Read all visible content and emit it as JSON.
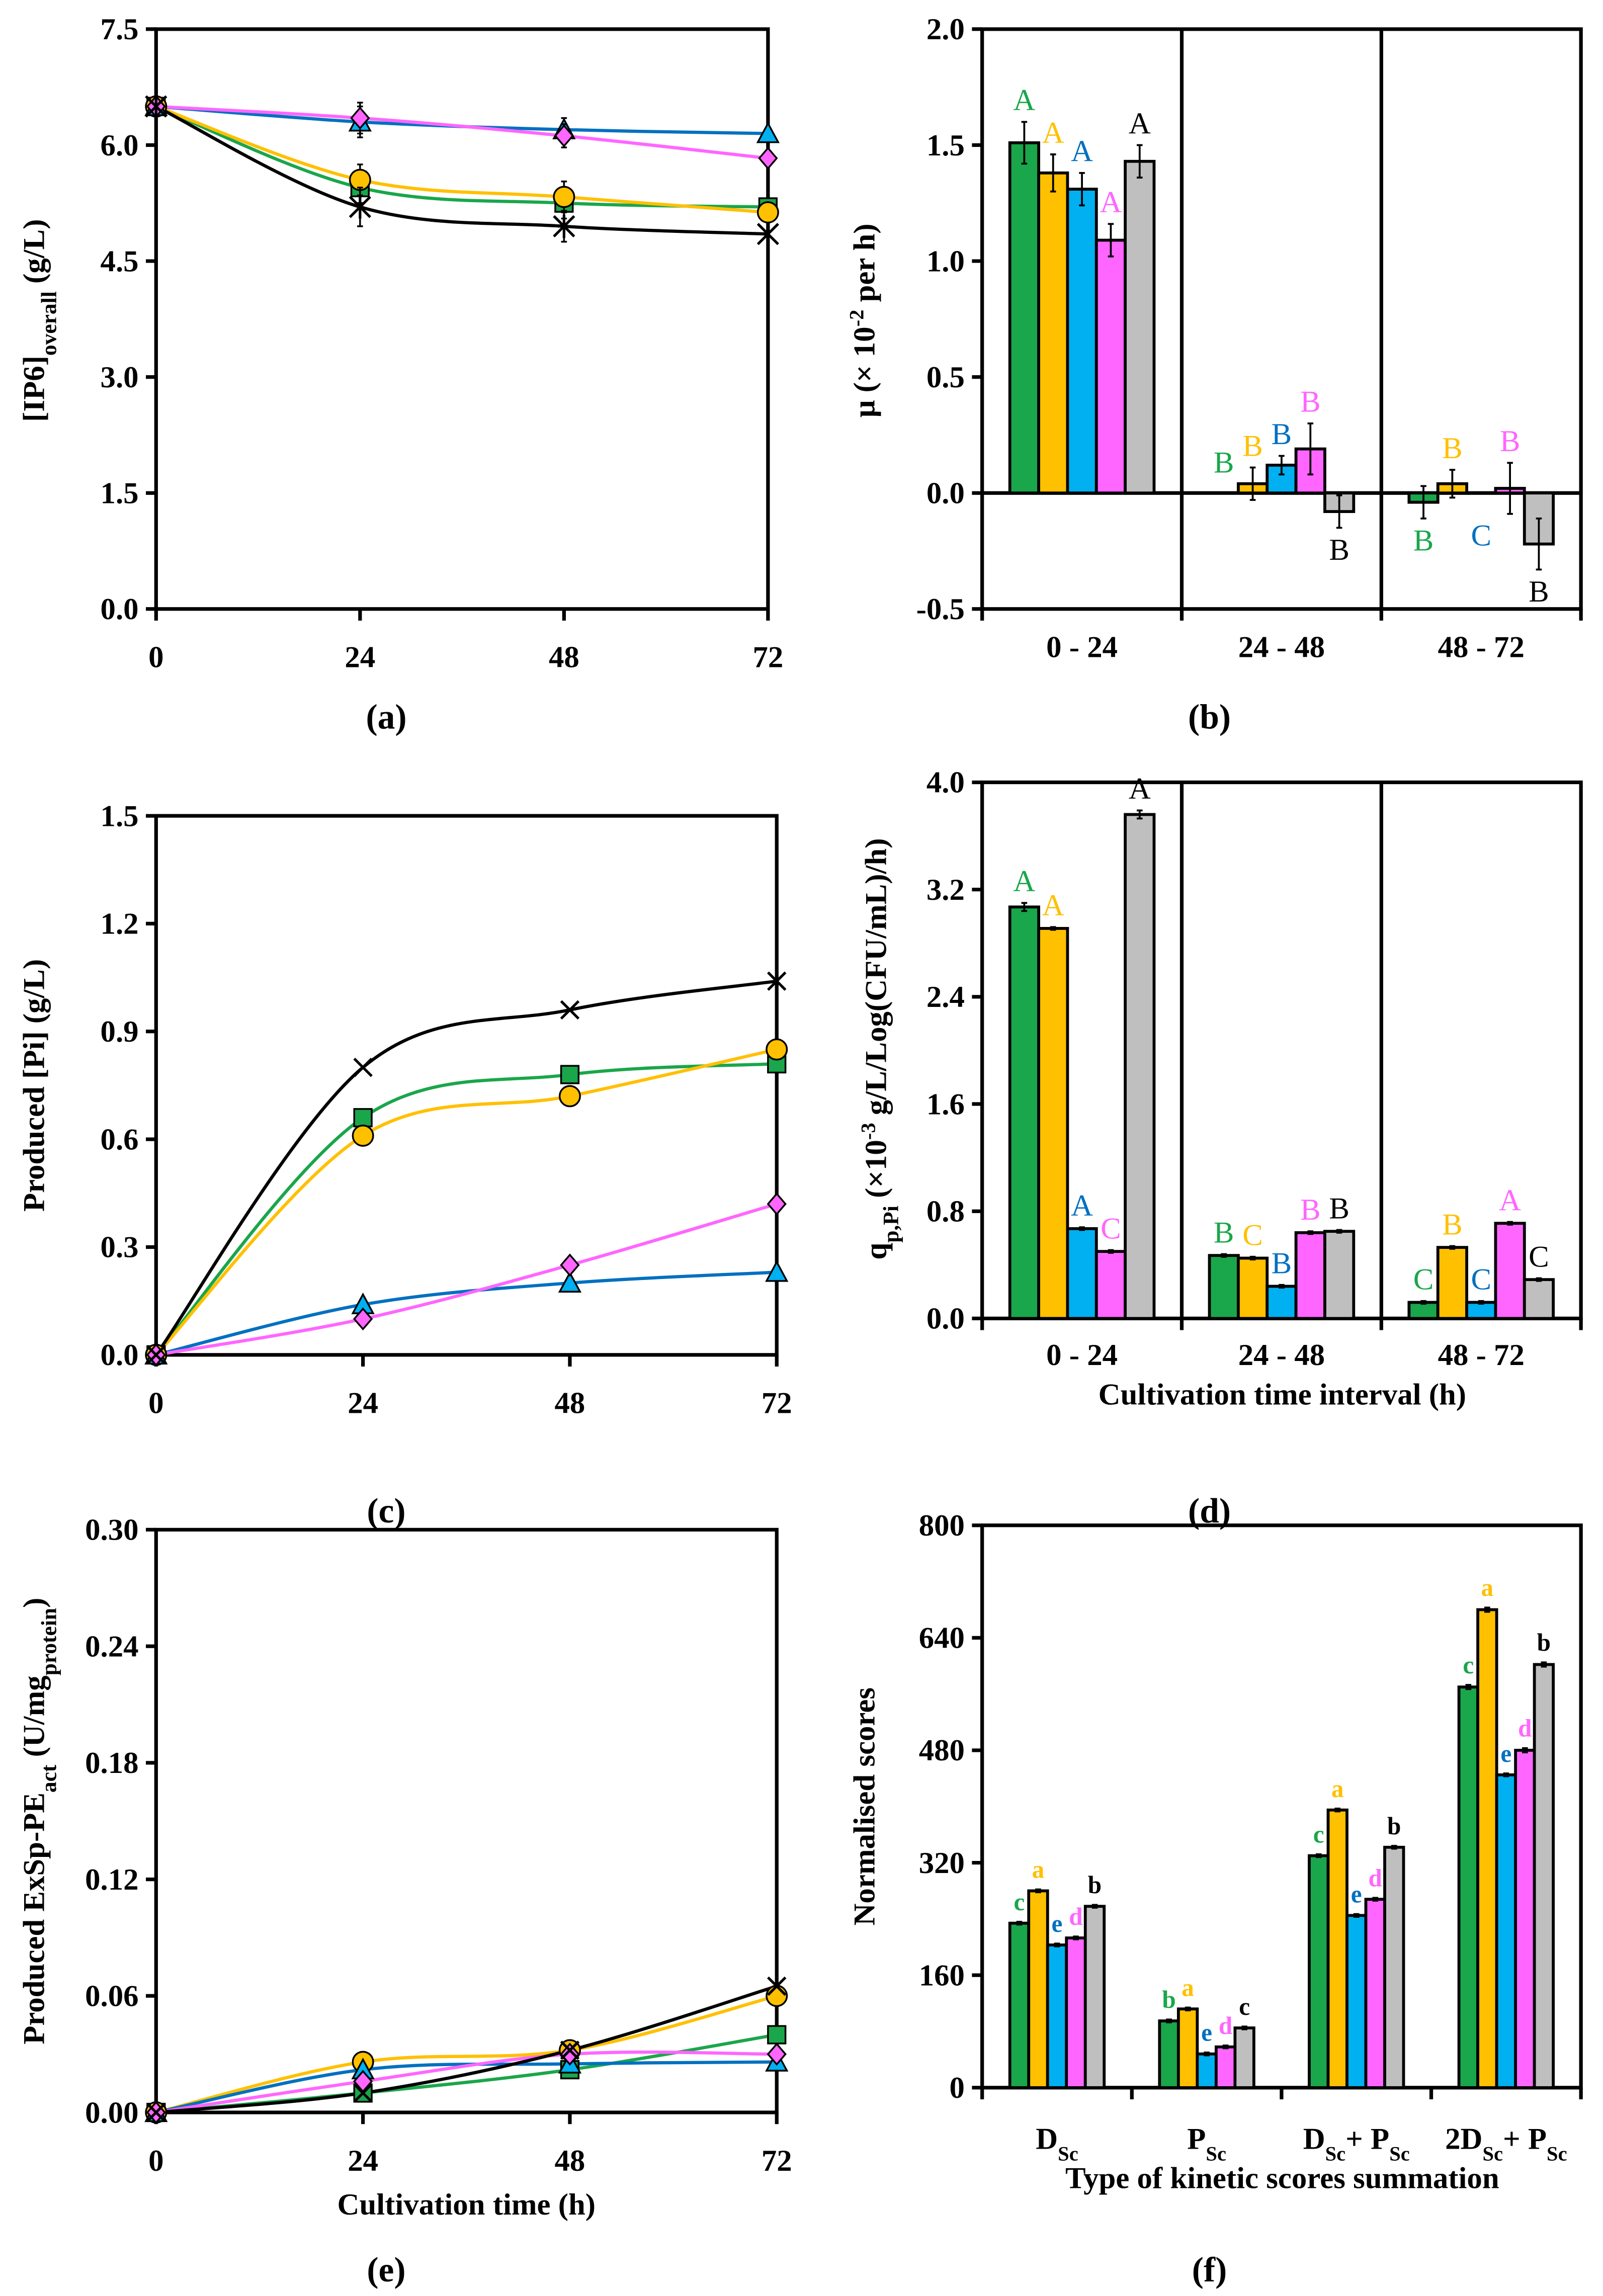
{
  "colors": {
    "green": "#1aa64a",
    "yellow": "#ffc000",
    "blue": "#00b0f0",
    "blue_line": "#0070c0",
    "pink": "#ff66ff",
    "gray": "#bfbfbf",
    "black": "#000000",
    "blue_letter": "#0070c0"
  },
  "chart_data": [
    {
      "id": "a",
      "type": "line",
      "panel_label": "(a)",
      "ylabel": {
        "main": "[IP6]",
        "sub": "overall",
        "tail": " (g/L)"
      },
      "xlabel": "",
      "x": [
        0,
        24,
        48,
        72
      ],
      "xticks": [
        "0",
        "24",
        "48",
        "72"
      ],
      "ylim": [
        0,
        7.5
      ],
      "yticks": [
        "0.0",
        "1.5",
        "3.0",
        "4.5",
        "6.0",
        "7.5"
      ],
      "series": [
        {
          "name": "green",
          "marker": "square",
          "color": "green",
          "values": [
            6.5,
            5.45,
            5.25,
            5.2
          ],
          "err": [
            0,
            0.2,
            0.2,
            0
          ]
        },
        {
          "name": "yellow",
          "marker": "circle",
          "color": "yellow",
          "values": [
            6.5,
            5.55,
            5.33,
            5.13
          ],
          "err": [
            0,
            0.2,
            0.2,
            0
          ]
        },
        {
          "name": "blue",
          "marker": "triangle",
          "color": "blue",
          "values": [
            6.5,
            6.3,
            6.2,
            6.15
          ],
          "err": [
            0,
            0.2,
            0.15,
            0
          ]
        },
        {
          "name": "pink",
          "marker": "diamond",
          "color": "pink",
          "values": [
            6.5,
            6.35,
            6.12,
            5.83
          ],
          "err": [
            0,
            0.2,
            0.15,
            0
          ]
        },
        {
          "name": "black",
          "marker": "star",
          "color": "black",
          "values": [
            6.5,
            5.2,
            4.95,
            4.85
          ],
          "err": [
            0,
            0.25,
            0.2,
            0
          ]
        }
      ]
    },
    {
      "id": "b",
      "type": "bar",
      "panel_label": "(b)",
      "ylabel": {
        "main": "μ (× 10",
        "sup": "-2",
        "tail": " per h)"
      },
      "xlabel": "",
      "categories": [
        "0 - 24",
        "24 - 48",
        "48 - 72"
      ],
      "ylim": [
        -0.5,
        2.0
      ],
      "yticks": [
        "-0.5",
        "0.0",
        "0.5",
        "1.0",
        "1.5",
        "2.0"
      ],
      "series_colors": [
        "green",
        "yellow",
        "blue",
        "pink",
        "gray"
      ],
      "values": [
        [
          1.51,
          1.38,
          1.31,
          1.09,
          1.43
        ],
        [
          0.0,
          0.04,
          0.12,
          0.19,
          -0.08
        ],
        [
          -0.04,
          0.04,
          0.0,
          0.02,
          -0.22
        ]
      ],
      "errors": [
        [
          0.09,
          0.08,
          0.07,
          0.07,
          0.07
        ],
        [
          0,
          0.07,
          0.04,
          0.11,
          0.07
        ],
        [
          0.07,
          0.06,
          0,
          0.11,
          0.11
        ]
      ],
      "letters": [
        [
          "A",
          "A",
          "A",
          "A",
          "A"
        ],
        [
          "B",
          "B",
          "B",
          "B",
          "B"
        ],
        [
          "B",
          "B",
          "C",
          "B",
          "B"
        ]
      ]
    },
    {
      "id": "c",
      "type": "line",
      "panel_label": "(c)",
      "ylabel": {
        "main": "Produced [Pi] (g/L)",
        "sub": "",
        "tail": ""
      },
      "xlabel": "",
      "x": [
        0,
        24,
        48,
        72
      ],
      "xticks": [
        "0",
        "24",
        "48",
        "72"
      ],
      "ylim": [
        0,
        1.5
      ],
      "yticks": [
        "0.0",
        "0.3",
        "0.6",
        "0.9",
        "1.2",
        "1.5"
      ],
      "series": [
        {
          "name": "green",
          "marker": "square",
          "color": "green",
          "values": [
            0,
            0.66,
            0.78,
            0.81
          ]
        },
        {
          "name": "yellow",
          "marker": "circle",
          "color": "yellow",
          "values": [
            0,
            0.61,
            0.72,
            0.85
          ]
        },
        {
          "name": "blue",
          "marker": "triangle",
          "color": "blue",
          "values": [
            0,
            0.14,
            0.2,
            0.23
          ]
        },
        {
          "name": "pink",
          "marker": "diamond",
          "color": "pink",
          "values": [
            0,
            0.1,
            0.25,
            0.42
          ]
        },
        {
          "name": "black",
          "marker": "cross",
          "color": "black",
          "values": [
            0,
            0.8,
            0.96,
            1.04
          ]
        }
      ]
    },
    {
      "id": "d",
      "type": "bar",
      "panel_label": "(d)",
      "ylabel": {
        "main": "q",
        "sub": "p,Pi",
        "tail": " (×10",
        "sup": "-3",
        "tail2": " g/L/Log(CFU/mL)/h)"
      },
      "xlabel": "Cultivation time interval (h)",
      "categories": [
        "0 - 24",
        "24 - 48",
        "48 - 72"
      ],
      "ylim": [
        0,
        4.0
      ],
      "yticks": [
        "0.0",
        "0.8",
        "1.6",
        "2.4",
        "3.2",
        "4.0"
      ],
      "series_colors": [
        "green",
        "yellow",
        "blue",
        "pink",
        "gray"
      ],
      "values": [
        [
          3.07,
          2.91,
          0.67,
          0.5,
          3.76
        ],
        [
          0.47,
          0.45,
          0.24,
          0.64,
          0.65
        ],
        [
          0.12,
          0.53,
          0.12,
          0.71,
          0.29
        ]
      ],
      "errors": [
        [
          0.03,
          0.01,
          0.01,
          0.01,
          0.03
        ],
        [
          0.01,
          0.01,
          0.01,
          0.01,
          0.01
        ],
        [
          0.01,
          0.01,
          0.01,
          0.01,
          0.01
        ]
      ],
      "letters": [
        [
          "A",
          "A",
          "A",
          "C",
          "A"
        ],
        [
          "B",
          "C",
          "B",
          "B",
          "B"
        ],
        [
          "C",
          "B",
          "C",
          "A",
          "C"
        ]
      ]
    },
    {
      "id": "e",
      "type": "line",
      "panel_label": "(e)",
      "ylabel": {
        "main": "Produced ExSp-PE",
        "sub": "act",
        "tail": " (U/mg",
        "sub2": "protein",
        "tail2": ")"
      },
      "xlabel": "Cultivation time (h)",
      "x": [
        0,
        24,
        48,
        72
      ],
      "xticks": [
        "0",
        "24",
        "48",
        "72"
      ],
      "ylim": [
        0,
        0.3
      ],
      "yticks": [
        "0.00",
        "0.06",
        "0.12",
        "0.18",
        "0.24",
        "0.30"
      ],
      "series": [
        {
          "name": "green",
          "marker": "square",
          "color": "green",
          "values": [
            0,
            0.01,
            0.022,
            0.04
          ]
        },
        {
          "name": "yellow",
          "marker": "circle",
          "color": "yellow",
          "values": [
            0,
            0.026,
            0.032,
            0.06
          ]
        },
        {
          "name": "blue",
          "marker": "triangle",
          "color": "blue",
          "values": [
            0,
            0.022,
            0.025,
            0.026
          ]
        },
        {
          "name": "pink",
          "marker": "diamond",
          "color": "pink",
          "values": [
            0,
            0.016,
            0.03,
            0.03
          ]
        },
        {
          "name": "black",
          "marker": "cross",
          "color": "black",
          "values": [
            0,
            0.01,
            0.032,
            0.065
          ]
        }
      ]
    },
    {
      "id": "f",
      "type": "bar",
      "panel_label": "(f)",
      "ylabel": {
        "main": "Normalised scores",
        "sub": "",
        "tail": ""
      },
      "xlabel": "Type of kinetic scores summation",
      "categories": [
        {
          "pre": "D",
          "sub": "Sc",
          "mid": "",
          "sub2": ""
        },
        {
          "pre": "P",
          "sub": "Sc",
          "mid": "",
          "sub2": ""
        },
        {
          "pre": "D",
          "sub": "Sc",
          "mid": "+ P",
          "sub2": "Sc"
        },
        {
          "pre": "2D",
          "sub": "Sc",
          "mid": "+ P",
          "sub2": "Sc"
        }
      ],
      "ylim": [
        0,
        800
      ],
      "yticks": [
        "0",
        "160",
        "320",
        "480",
        "640",
        "800"
      ],
      "series_colors": [
        "green",
        "yellow",
        "blue",
        "pink",
        "gray"
      ],
      "values": [
        [
          234,
          280,
          203,
          213,
          258
        ],
        [
          95,
          112,
          48,
          58,
          85
        ],
        [
          330,
          395,
          245,
          268,
          342
        ],
        [
          570,
          680,
          445,
          480,
          602
        ]
      ],
      "errors": [
        [
          2,
          2,
          2,
          2,
          2
        ],
        [
          2,
          2,
          2,
          2,
          2
        ],
        [
          2,
          2,
          2,
          2,
          2
        ],
        [
          3,
          3,
          2,
          3,
          3
        ]
      ],
      "letters": [
        [
          "c",
          "a",
          "e",
          "d",
          "b"
        ],
        [
          "b",
          "a",
          "e",
          "d",
          "c"
        ],
        [
          "c",
          "a",
          "e",
          "d",
          "b"
        ],
        [
          "c",
          "a",
          "e",
          "d",
          "b"
        ]
      ]
    }
  ]
}
